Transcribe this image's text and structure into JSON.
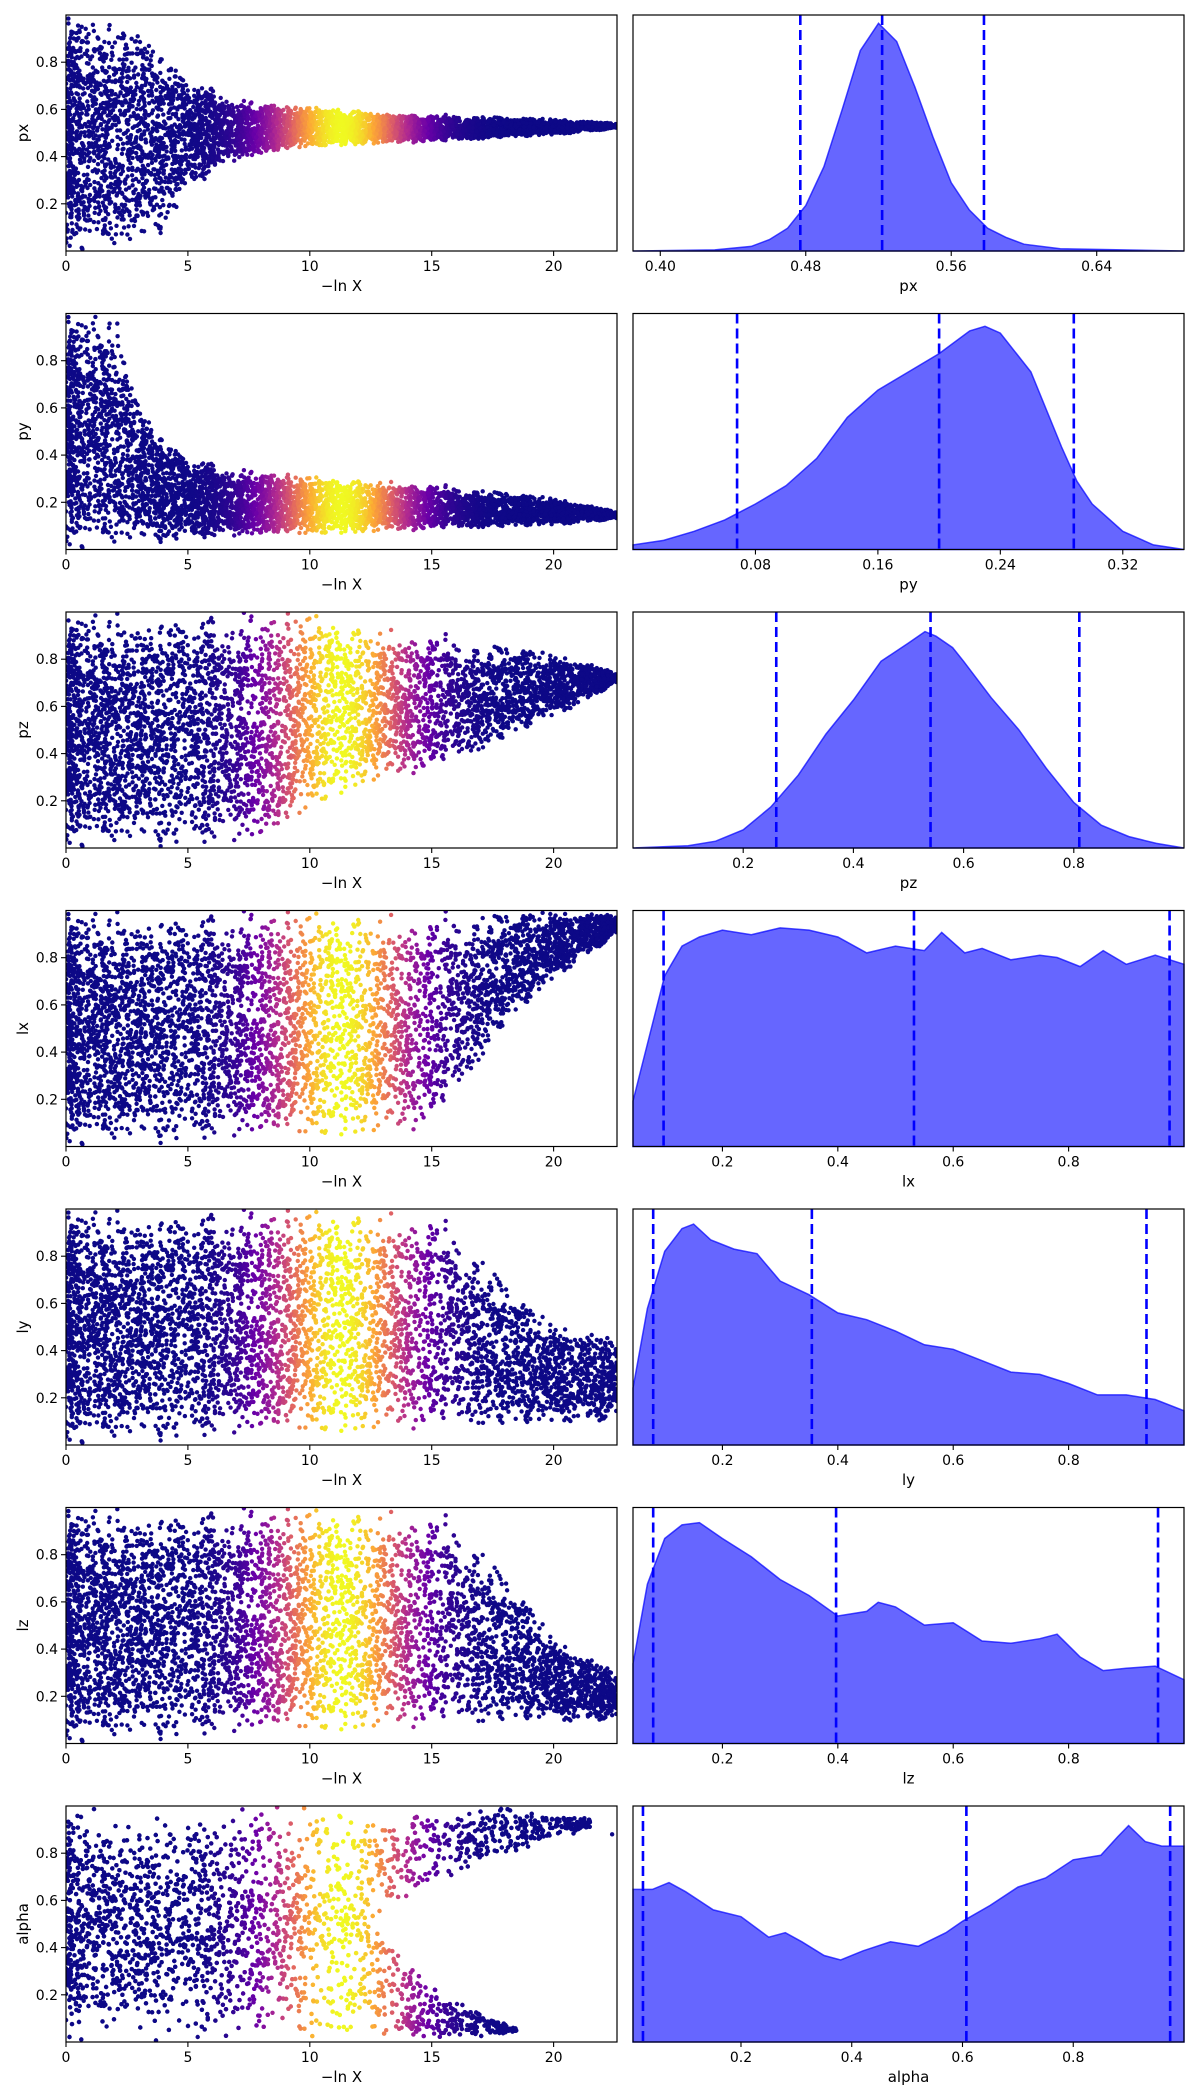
{
  "chart_data": [
    {
      "type": "scatter",
      "param": "px",
      "xlabel": "−ln X",
      "ylabel": "px",
      "xlim": [
        0,
        22.6
      ],
      "ylim": [
        0.0,
        1.0
      ],
      "xticks": [
        {
          "v": 0,
          "label": "0"
        },
        {
          "v": 5,
          "label": "5"
        },
        {
          "v": 10,
          "label": "10"
        },
        {
          "v": 15,
          "label": "15"
        },
        {
          "v": 20,
          "label": "20"
        }
      ],
      "yticks": [
        {
          "v": 0.2,
          "label": "0.2"
        },
        {
          "v": 0.4,
          "label": "0.4"
        },
        {
          "v": 0.6,
          "label": "0.6"
        },
        {
          "v": 0.8,
          "label": "0.8"
        }
      ],
      "colormap": [
        "#0d0887",
        "#6a00a8",
        "#b12a90",
        "#e16462",
        "#fca636",
        "#f0f921"
      ],
      "peak_weight_x": 11.3,
      "envelope_x": [
        0,
        3,
        4,
        5,
        7,
        10,
        15,
        20,
        22.6
      ],
      "envelope_lo": [
        0.0,
        0.0,
        0.08,
        0.25,
        0.38,
        0.44,
        0.46,
        0.49,
        0.52
      ],
      "envelope_hi": [
        1.0,
        1.0,
        0.85,
        0.75,
        0.64,
        0.61,
        0.58,
        0.56,
        0.54
      ],
      "last_point": [
        22.4,
        0.53
      ]
    },
    {
      "type": "area",
      "param": "px",
      "xlabel": "px",
      "xlim": [
        0.385,
        0.688
      ],
      "xticks": [
        {
          "v": 0.4,
          "label": "0.40"
        },
        {
          "v": 0.48,
          "label": "0.48"
        },
        {
          "v": 0.56,
          "label": "0.56"
        },
        {
          "v": 0.64,
          "label": "0.64"
        }
      ],
      "x": [
        0.385,
        0.43,
        0.45,
        0.46,
        0.47,
        0.48,
        0.49,
        0.5,
        0.51,
        0.52,
        0.53,
        0.54,
        0.55,
        0.56,
        0.57,
        0.58,
        0.59,
        0.6,
        0.62,
        0.688
      ],
      "density": [
        0,
        0.005,
        0.02,
        0.05,
        0.1,
        0.2,
        0.37,
        0.62,
        0.88,
        1.0,
        0.92,
        0.72,
        0.5,
        0.3,
        0.18,
        0.1,
        0.06,
        0.03,
        0.01,
        0
      ],
      "quantiles": [
        0.477,
        0.522,
        0.578
      ]
    },
    {
      "type": "scatter",
      "param": "py",
      "xlabel": "−ln X",
      "ylabel": "py",
      "xlim": [
        0,
        22.6
      ],
      "ylim": [
        0.0,
        1.0
      ],
      "xticks": [
        {
          "v": 0,
          "label": "0"
        },
        {
          "v": 5,
          "label": "5"
        },
        {
          "v": 10,
          "label": "10"
        },
        {
          "v": 15,
          "label": "15"
        },
        {
          "v": 20,
          "label": "20"
        }
      ],
      "yticks": [
        {
          "v": 0.2,
          "label": "0.2"
        },
        {
          "v": 0.4,
          "label": "0.4"
        },
        {
          "v": 0.6,
          "label": "0.6"
        },
        {
          "v": 0.8,
          "label": "0.8"
        }
      ],
      "colormap": [
        "#0d0887",
        "#6a00a8",
        "#b12a90",
        "#e16462",
        "#fca636",
        "#f0f921"
      ],
      "peak_weight_x": 11.3,
      "envelope_x": [
        0,
        2,
        3,
        4,
        5,
        7,
        10,
        15,
        20,
        22.6
      ],
      "envelope_lo": [
        0.0,
        0.0,
        0.02,
        0.03,
        0.04,
        0.05,
        0.06,
        0.08,
        0.1,
        0.13
      ],
      "envelope_hi": [
        1.0,
        1.0,
        0.65,
        0.48,
        0.4,
        0.34,
        0.31,
        0.28,
        0.22,
        0.16
      ],
      "last_point": [
        22.4,
        0.15
      ]
    },
    {
      "type": "area",
      "param": "py",
      "xlabel": "py",
      "xlim": [
        0.0,
        0.36
      ],
      "xticks": [
        {
          "v": 0.08,
          "label": "0.08"
        },
        {
          "v": 0.16,
          "label": "0.16"
        },
        {
          "v": 0.24,
          "label": "0.24"
        },
        {
          "v": 0.32,
          "label": "0.32"
        }
      ],
      "x": [
        0.0,
        0.02,
        0.04,
        0.06,
        0.08,
        0.1,
        0.12,
        0.14,
        0.16,
        0.18,
        0.2,
        0.22,
        0.23,
        0.24,
        0.26,
        0.28,
        0.29,
        0.3,
        0.32,
        0.34,
        0.36
      ],
      "density": [
        0.02,
        0.04,
        0.08,
        0.13,
        0.2,
        0.28,
        0.4,
        0.58,
        0.7,
        0.78,
        0.86,
        0.96,
        0.98,
        0.95,
        0.78,
        0.45,
        0.3,
        0.2,
        0.08,
        0.02,
        0
      ],
      "quantiles": [
        0.068,
        0.2,
        0.288
      ]
    },
    {
      "type": "scatter",
      "param": "pz",
      "xlabel": "−ln X",
      "ylabel": "pz",
      "xlim": [
        0,
        22.6
      ],
      "ylim": [
        0.0,
        1.0
      ],
      "xticks": [
        {
          "v": 0,
          "label": "0"
        },
        {
          "v": 5,
          "label": "5"
        },
        {
          "v": 10,
          "label": "10"
        },
        {
          "v": 15,
          "label": "15"
        },
        {
          "v": 20,
          "label": "20"
        }
      ],
      "yticks": [
        {
          "v": 0.2,
          "label": "0.2"
        },
        {
          "v": 0.4,
          "label": "0.4"
        },
        {
          "v": 0.6,
          "label": "0.6"
        },
        {
          "v": 0.8,
          "label": "0.8"
        }
      ],
      "colormap": [
        "#0d0887",
        "#6a00a8",
        "#b12a90",
        "#e16462",
        "#fca636",
        "#f0f921"
      ],
      "peak_weight_x": 11.3,
      "envelope_x": [
        0,
        8,
        9,
        10,
        12,
        15,
        17,
        19,
        21,
        22.6
      ],
      "envelope_lo": [
        0.0,
        0.0,
        0.05,
        0.15,
        0.25,
        0.32,
        0.4,
        0.5,
        0.6,
        0.7
      ],
      "envelope_hi": [
        1.0,
        1.0,
        1.0,
        1.0,
        0.95,
        0.92,
        0.88,
        0.85,
        0.8,
        0.74
      ],
      "last_point": [
        22.4,
        0.72
      ]
    },
    {
      "type": "area",
      "param": "pz",
      "xlabel": "pz",
      "xlim": [
        0.0,
        1.0
      ],
      "xticks": [
        {
          "v": 0.2,
          "label": "0.2"
        },
        {
          "v": 0.4,
          "label": "0.4"
        },
        {
          "v": 0.6,
          "label": "0.6"
        },
        {
          "v": 0.8,
          "label": "0.8"
        }
      ],
      "x": [
        0.0,
        0.1,
        0.15,
        0.2,
        0.25,
        0.3,
        0.35,
        0.4,
        0.45,
        0.5,
        0.53,
        0.55,
        0.58,
        0.6,
        0.65,
        0.7,
        0.75,
        0.8,
        0.85,
        0.9,
        0.95,
        1.0
      ],
      "density": [
        0,
        0.01,
        0.03,
        0.08,
        0.18,
        0.32,
        0.5,
        0.65,
        0.82,
        0.9,
        0.95,
        0.93,
        0.88,
        0.82,
        0.66,
        0.52,
        0.35,
        0.2,
        0.1,
        0.05,
        0.02,
        0
      ],
      "quantiles": [
        0.26,
        0.54,
        0.81
      ]
    },
    {
      "type": "scatter",
      "param": "lx",
      "xlabel": "−ln X",
      "ylabel": "lx",
      "xlim": [
        0,
        22.6
      ],
      "ylim": [
        0.0,
        1.0
      ],
      "xticks": [
        {
          "v": 0,
          "label": "0"
        },
        {
          "v": 5,
          "label": "5"
        },
        {
          "v": 10,
          "label": "10"
        },
        {
          "v": 15,
          "label": "15"
        },
        {
          "v": 20,
          "label": "20"
        }
      ],
      "yticks": [
        {
          "v": 0.2,
          "label": "0.2"
        },
        {
          "v": 0.4,
          "label": "0.4"
        },
        {
          "v": 0.6,
          "label": "0.6"
        },
        {
          "v": 0.8,
          "label": "0.8"
        }
      ],
      "colormap": [
        "#0d0887",
        "#6a00a8",
        "#b12a90",
        "#e16462",
        "#fca636",
        "#f0f921"
      ],
      "peak_weight_x": 11.3,
      "envelope_x": [
        0,
        10,
        14,
        15,
        16,
        17,
        18,
        20,
        22.6
      ],
      "envelope_lo": [
        0.0,
        0.02,
        0.04,
        0.08,
        0.2,
        0.35,
        0.5,
        0.7,
        0.9
      ],
      "envelope_hi": [
        1.0,
        1.0,
        1.0,
        1.0,
        1.0,
        1.0,
        1.0,
        1.0,
        0.98
      ],
      "last_point": [
        22.4,
        0.96
      ]
    },
    {
      "type": "area",
      "param": "lx",
      "xlabel": "lx",
      "xlim": [
        0.045,
        1.0
      ],
      "xticks": [
        {
          "v": 0.2,
          "label": "0.2"
        },
        {
          "v": 0.4,
          "label": "0.4"
        },
        {
          "v": 0.6,
          "label": "0.6"
        },
        {
          "v": 0.8,
          "label": "0.8"
        }
      ],
      "x": [
        0.045,
        0.07,
        0.1,
        0.13,
        0.16,
        0.2,
        0.25,
        0.3,
        0.35,
        0.4,
        0.45,
        0.5,
        0.55,
        0.58,
        0.62,
        0.65,
        0.7,
        0.75,
        0.78,
        0.82,
        0.86,
        0.9,
        0.95,
        1.0
      ],
      "density": [
        0.2,
        0.45,
        0.75,
        0.88,
        0.92,
        0.95,
        0.93,
        0.96,
        0.95,
        0.92,
        0.85,
        0.88,
        0.86,
        0.94,
        0.85,
        0.87,
        0.82,
        0.84,
        0.83,
        0.79,
        0.86,
        0.8,
        0.84,
        0.8
      ],
      "quantiles": [
        0.098,
        0.532,
        0.975
      ]
    },
    {
      "type": "scatter",
      "param": "ly",
      "xlabel": "−ln X",
      "ylabel": "ly",
      "xlim": [
        0,
        22.6
      ],
      "ylim": [
        0.0,
        1.0
      ],
      "xticks": [
        {
          "v": 0,
          "label": "0"
        },
        {
          "v": 5,
          "label": "5"
        },
        {
          "v": 10,
          "label": "10"
        },
        {
          "v": 15,
          "label": "15"
        },
        {
          "v": 20,
          "label": "20"
        }
      ],
      "yticks": [
        {
          "v": 0.2,
          "label": "0.2"
        },
        {
          "v": 0.4,
          "label": "0.4"
        },
        {
          "v": 0.6,
          "label": "0.6"
        },
        {
          "v": 0.8,
          "label": "0.8"
        }
      ],
      "colormap": [
        "#0d0887",
        "#6a00a8",
        "#b12a90",
        "#e16462",
        "#fca636",
        "#f0f921"
      ],
      "peak_weight_x": 11.3,
      "envelope_x": [
        0,
        10,
        15,
        16,
        17,
        18,
        19,
        20,
        22.6
      ],
      "envelope_lo": [
        0.0,
        0.03,
        0.05,
        0.06,
        0.06,
        0.06,
        0.07,
        0.08,
        0.1
      ],
      "envelope_hi": [
        1.0,
        1.0,
        1.0,
        0.92,
        0.82,
        0.7,
        0.6,
        0.52,
        0.45
      ],
      "last_point": [
        22.4,
        0.42
      ]
    },
    {
      "type": "area",
      "param": "ly",
      "xlabel": "ly",
      "xlim": [
        0.045,
        1.0
      ],
      "xticks": [
        {
          "v": 0.2,
          "label": "0.2"
        },
        {
          "v": 0.4,
          "label": "0.4"
        },
        {
          "v": 0.6,
          "label": "0.6"
        },
        {
          "v": 0.8,
          "label": "0.8"
        }
      ],
      "x": [
        0.045,
        0.07,
        0.1,
        0.13,
        0.15,
        0.18,
        0.22,
        0.26,
        0.3,
        0.35,
        0.4,
        0.45,
        0.5,
        0.55,
        0.6,
        0.65,
        0.7,
        0.75,
        0.8,
        0.85,
        0.9,
        0.95,
        1.0
      ],
      "density": [
        0.25,
        0.6,
        0.85,
        0.95,
        0.97,
        0.9,
        0.86,
        0.84,
        0.72,
        0.66,
        0.58,
        0.55,
        0.5,
        0.44,
        0.42,
        0.37,
        0.32,
        0.31,
        0.27,
        0.22,
        0.22,
        0.2,
        0.15
      ],
      "quantiles": [
        0.08,
        0.355,
        0.935
      ]
    },
    {
      "type": "scatter",
      "param": "lz",
      "xlabel": "−ln X",
      "ylabel": "lz",
      "xlim": [
        0,
        22.6
      ],
      "ylim": [
        0.0,
        1.0
      ],
      "xticks": [
        {
          "v": 0,
          "label": "0"
        },
        {
          "v": 5,
          "label": "5"
        },
        {
          "v": 10,
          "label": "10"
        },
        {
          "v": 15,
          "label": "15"
        },
        {
          "v": 20,
          "label": "20"
        }
      ],
      "yticks": [
        {
          "v": 0.2,
          "label": "0.2"
        },
        {
          "v": 0.4,
          "label": "0.4"
        },
        {
          "v": 0.6,
          "label": "0.6"
        },
        {
          "v": 0.8,
          "label": "0.8"
        }
      ],
      "colormap": [
        "#0d0887",
        "#6a00a8",
        "#b12a90",
        "#e16462",
        "#fca636",
        "#f0f921"
      ],
      "peak_weight_x": 11.3,
      "envelope_x": [
        0,
        10,
        15,
        16,
        17,
        18,
        19,
        20,
        22.6
      ],
      "envelope_lo": [
        0.0,
        0.03,
        0.05,
        0.06,
        0.06,
        0.07,
        0.08,
        0.08,
        0.1
      ],
      "envelope_hi": [
        1.0,
        1.0,
        1.0,
        0.95,
        0.85,
        0.72,
        0.6,
        0.45,
        0.3
      ],
      "last_point": [
        22.4,
        0.12
      ]
    },
    {
      "type": "area",
      "param": "lz",
      "xlabel": "lz",
      "xlim": [
        0.045,
        1.0
      ],
      "xticks": [
        {
          "v": 0.2,
          "label": "0.2"
        },
        {
          "v": 0.4,
          "label": "0.4"
        },
        {
          "v": 0.6,
          "label": "0.6"
        },
        {
          "v": 0.8,
          "label": "0.8"
        }
      ],
      "x": [
        0.045,
        0.07,
        0.1,
        0.13,
        0.16,
        0.2,
        0.25,
        0.3,
        0.35,
        0.4,
        0.45,
        0.47,
        0.5,
        0.55,
        0.6,
        0.65,
        0.7,
        0.75,
        0.78,
        0.82,
        0.86,
        0.9,
        0.95,
        1.0
      ],
      "density": [
        0.35,
        0.7,
        0.9,
        0.96,
        0.97,
        0.9,
        0.82,
        0.72,
        0.65,
        0.56,
        0.58,
        0.62,
        0.6,
        0.52,
        0.53,
        0.45,
        0.44,
        0.46,
        0.48,
        0.38,
        0.32,
        0.33,
        0.34,
        0.28
      ],
      "quantiles": [
        0.08,
        0.397,
        0.955
      ]
    },
    {
      "type": "scatter",
      "param": "alpha",
      "xlabel": "−ln X",
      "ylabel": "alpha",
      "xlim": [
        0,
        22.6
      ],
      "ylim": [
        0.0,
        1.0
      ],
      "xticks": [
        {
          "v": 0,
          "label": "0"
        },
        {
          "v": 5,
          "label": "5"
        },
        {
          "v": 10,
          "label": "10"
        },
        {
          "v": 15,
          "label": "15"
        },
        {
          "v": 20,
          "label": "20"
        }
      ],
      "yticks": [
        {
          "v": 0.2,
          "label": "0.2"
        },
        {
          "v": 0.4,
          "label": "0.4"
        },
        {
          "v": 0.6,
          "label": "0.6"
        },
        {
          "v": 0.8,
          "label": "0.8"
        }
      ],
      "colormap": [
        "#0d0887",
        "#6a00a8",
        "#b12a90",
        "#e16462",
        "#fca636",
        "#f0f921"
      ],
      "peak_weight_x": 11.3,
      "lower_blob": {
        "envelope_x": [
          0,
          12,
          14,
          15,
          16,
          17,
          18.5
        ],
        "envelope_lo": [
          0.0,
          0.0,
          0.0,
          0.0,
          0.01,
          0.02,
          0.04
        ],
        "envelope_hi": [
          0.95,
          0.65,
          0.35,
          0.25,
          0.18,
          0.12,
          0.06
        ]
      },
      "upper_blob": {
        "envelope_x": [
          0,
          12,
          14,
          15,
          16,
          17,
          18,
          19,
          20,
          21.5
        ],
        "envelope_lo": [
          0.05,
          0.35,
          0.6,
          0.65,
          0.7,
          0.74,
          0.78,
          0.82,
          0.86,
          0.9
        ],
        "envelope_hi": [
          1.0,
          1.0,
          1.0,
          1.0,
          1.0,
          1.0,
          1.0,
          0.98,
          0.96,
          0.95
        ]
      },
      "last_point": [
        22.4,
        0.88
      ]
    },
    {
      "type": "area",
      "param": "alpha",
      "xlabel": "alpha",
      "xlim": [
        0.005,
        1.0
      ],
      "xticks": [
        {
          "v": 0.2,
          "label": "0.2"
        },
        {
          "v": 0.4,
          "label": "0.4"
        },
        {
          "v": 0.6,
          "label": "0.6"
        },
        {
          "v": 0.8,
          "label": "0.8"
        }
      ],
      "x": [
        0.005,
        0.04,
        0.07,
        0.1,
        0.15,
        0.2,
        0.25,
        0.28,
        0.31,
        0.35,
        0.38,
        0.42,
        0.47,
        0.52,
        0.57,
        0.6,
        0.65,
        0.7,
        0.75,
        0.8,
        0.85,
        0.88,
        0.9,
        0.93,
        0.96,
        1.0
      ],
      "density": [
        0.67,
        0.67,
        0.7,
        0.66,
        0.58,
        0.55,
        0.46,
        0.48,
        0.44,
        0.38,
        0.36,
        0.4,
        0.44,
        0.42,
        0.48,
        0.53,
        0.6,
        0.68,
        0.72,
        0.8,
        0.82,
        0.9,
        0.95,
        0.88,
        0.86,
        0.86
      ],
      "quantiles": [
        0.023,
        0.607,
        0.975
      ]
    }
  ]
}
